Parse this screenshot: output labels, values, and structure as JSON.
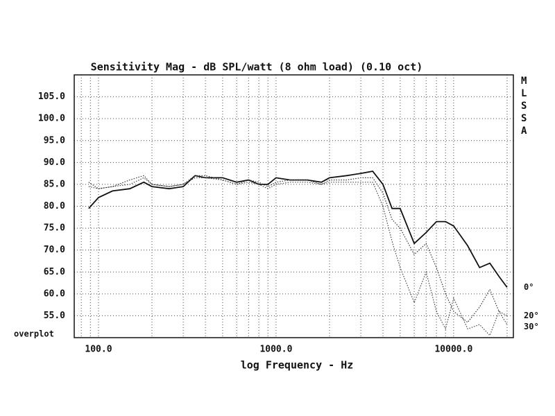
{
  "chart_data": {
    "type": "line",
    "title": "Sensitivity Mag - dB SPL/watt (8 ohm load) (0.10 oct)",
    "x_label": "log Frequency - Hz",
    "bottom_left_label": "overplot",
    "side_label": "MLSSA",
    "x_scale": "log",
    "xlim": [
      73,
      21700
    ],
    "xticks": [
      {
        "value": 100,
        "label": "100.0"
      },
      {
        "value": 1000,
        "label": "1000.0"
      },
      {
        "value": 10000,
        "label": "10000.0"
      }
    ],
    "x_minor_grid": [
      80,
      90,
      200,
      300,
      400,
      500,
      600,
      700,
      800,
      900,
      2000,
      3000,
      4000,
      5000,
      6000,
      7000,
      8000,
      9000,
      20000
    ],
    "ylim": [
      50,
      110
    ],
    "yticks": [
      {
        "value": 55,
        "label": "55.0"
      },
      {
        "value": 60,
        "label": "60.0"
      },
      {
        "value": 65,
        "label": "65.0"
      },
      {
        "value": 70,
        "label": "70.0"
      },
      {
        "value": 75,
        "label": "75.0"
      },
      {
        "value": 80,
        "label": "80.0"
      },
      {
        "value": 85,
        "label": "85.0"
      },
      {
        "value": 90,
        "label": "90.0"
      },
      {
        "value": 95,
        "label": "95.0"
      },
      {
        "value": 100,
        "label": "100.0"
      },
      {
        "value": 105,
        "label": "105.0"
      }
    ],
    "grid": true,
    "x": [
      88,
      100,
      120,
      150,
      180,
      200,
      250,
      300,
      350,
      400,
      500,
      600,
      700,
      800,
      900,
      1000,
      1200,
      1500,
      1800,
      2000,
      2500,
      3000,
      3500,
      4000,
      4500,
      5000,
      6000,
      7000,
      8000,
      9000,
      10000,
      12000,
      14000,
      16000,
      18000,
      20000
    ],
    "series": [
      {
        "name": "0°",
        "color": "#111111",
        "style": "solid",
        "values": [
          79.5,
          82,
          83.5,
          84,
          85.5,
          84.5,
          84,
          84.5,
          87,
          86.5,
          86.5,
          85.5,
          86,
          85,
          85,
          86.5,
          86,
          86,
          85.5,
          86.5,
          87,
          87.5,
          88,
          85,
          79.5,
          79.5,
          71.5,
          74,
          76.5,
          76.5,
          75.5,
          71,
          66,
          67,
          64,
          61.5
        ]
      },
      {
        "name": "20°",
        "color": "#333333",
        "style": "dotted",
        "values": [
          85.5,
          84,
          84.5,
          86,
          87,
          85,
          84.5,
          85,
          87,
          87,
          86,
          85,
          86,
          85.5,
          84.5,
          85.5,
          86,
          86,
          85,
          86,
          86,
          86.5,
          86.5,
          83,
          77,
          75,
          69,
          71.5,
          66,
          60,
          56,
          53.5,
          57,
          61,
          56,
          55
        ]
      },
      {
        "name": "30°",
        "color": "#444444",
        "style": "dotted",
        "values": [
          84.5,
          84,
          84.5,
          85,
          86.5,
          85,
          84.5,
          85,
          86.5,
          86.5,
          86,
          85,
          85.5,
          85,
          84,
          85,
          85.5,
          85.5,
          85,
          85.5,
          85.5,
          85.5,
          85.5,
          80,
          72,
          66,
          58,
          65,
          56,
          52,
          59,
          52,
          53,
          50.5,
          56,
          53
        ]
      }
    ]
  }
}
